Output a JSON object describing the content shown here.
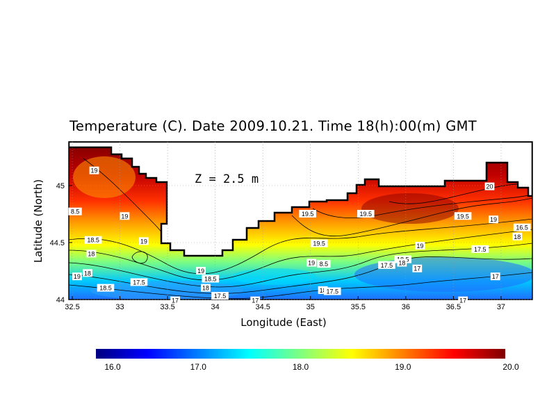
{
  "title": "Temperature (C). Date 2009.10.21. Time 18(h):00(m) GMT",
  "depth_label": "Z = 2.5 m",
  "xlabel": "Longitude (East)",
  "ylabel": "Latitude (North)",
  "x_ticks": [
    "32.5",
    "33",
    "33.5",
    "34",
    "34.5",
    "35",
    "35.5",
    "36",
    "36.5",
    "37"
  ],
  "y_ticks": [
    "44",
    "44.5",
    "45"
  ],
  "colorbar": {
    "ticks": [
      "16.0",
      "17.0",
      "18.0",
      "19.0",
      "20.0"
    ],
    "range": [
      16.0,
      20.0
    ],
    "colors": [
      "#00007f",
      "#0000ff",
      "#007fff",
      "#00ffff",
      "#7fff7f",
      "#ffff00",
      "#ff7f00",
      "#ff0000",
      "#7f0000"
    ]
  },
  "contour_labels": [
    {
      "text": "19",
      "lon": 32.73,
      "lat": 45.13
    },
    {
      "text": "8.5",
      "lon": 32.53,
      "lat": 44.77
    },
    {
      "text": "19",
      "lon": 33.05,
      "lat": 44.73
    },
    {
      "text": "18.5",
      "lon": 32.72,
      "lat": 44.52
    },
    {
      "text": "19",
      "lon": 33.25,
      "lat": 44.51
    },
    {
      "text": "18",
      "lon": 32.7,
      "lat": 44.4
    },
    {
      "text": "19",
      "lon": 32.55,
      "lat": 44.2
    },
    {
      "text": "18",
      "lon": 32.66,
      "lat": 44.23
    },
    {
      "text": "18.5",
      "lon": 32.85,
      "lat": 44.1
    },
    {
      "text": "17.5",
      "lon": 33.2,
      "lat": 44.15
    },
    {
      "text": "17",
      "lon": 33.58,
      "lat": 43.99
    },
    {
      "text": "19",
      "lon": 33.85,
      "lat": 44.25
    },
    {
      "text": "18.5",
      "lon": 33.95,
      "lat": 44.18
    },
    {
      "text": "18",
      "lon": 33.9,
      "lat": 44.1
    },
    {
      "text": "17.5",
      "lon": 34.05,
      "lat": 44.03
    },
    {
      "text": "17",
      "lon": 34.42,
      "lat": 43.99
    },
    {
      "text": "19.5",
      "lon": 34.97,
      "lat": 44.75
    },
    {
      "text": "19.5",
      "lon": 35.58,
      "lat": 44.75
    },
    {
      "text": "19.5",
      "lon": 35.09,
      "lat": 44.49
    },
    {
      "text": "19",
      "lon": 35.01,
      "lat": 44.32
    },
    {
      "text": "8.5",
      "lon": 35.14,
      "lat": 44.31
    },
    {
      "text": "18",
      "lon": 35.13,
      "lat": 44.08
    },
    {
      "text": "17.5",
      "lon": 35.23,
      "lat": 44.07
    },
    {
      "text": "20",
      "lon": 36.88,
      "lat": 44.99
    },
    {
      "text": "19.5",
      "lon": 36.6,
      "lat": 44.73
    },
    {
      "text": "19",
      "lon": 36.92,
      "lat": 44.7
    },
    {
      "text": "16.5",
      "lon": 37.22,
      "lat": 44.63
    },
    {
      "text": "18",
      "lon": 37.17,
      "lat": 44.55
    },
    {
      "text": "19",
      "lon": 36.15,
      "lat": 44.47
    },
    {
      "text": "17.5",
      "lon": 36.78,
      "lat": 44.44
    },
    {
      "text": "18.5",
      "lon": 35.97,
      "lat": 44.35
    },
    {
      "text": "18",
      "lon": 35.96,
      "lat": 44.32
    },
    {
      "text": "17.5",
      "lon": 35.8,
      "lat": 44.3
    },
    {
      "text": "17",
      "lon": 36.12,
      "lat": 44.27
    },
    {
      "text": "17",
      "lon": 36.94,
      "lat": 44.2
    },
    {
      "text": "17",
      "lon": 36.6,
      "lat": 43.99
    }
  ]
}
